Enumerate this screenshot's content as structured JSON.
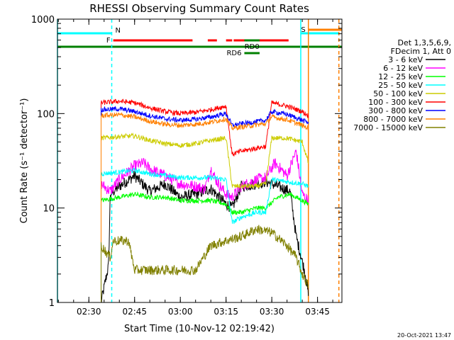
{
  "chart_data": {
    "type": "line",
    "title": "RHESSI Observing Summary Count Rates",
    "xlabel": "Start Time (10-Nov-12 02:19:42)",
    "ylabel": "Count Rate (s⁻¹ detector⁻¹)",
    "ylog": true,
    "xlim": [
      "02:19:42",
      "03:53:00"
    ],
    "ylim": [
      1,
      1000
    ],
    "x_ticks": [
      "02:30",
      "02:45",
      "03:00",
      "03:15",
      "03:30",
      "03:45"
    ],
    "y_ticks": [
      "1",
      "10",
      "100",
      "1000"
    ],
    "legend_header": [
      "Det 1,3,5,6,9,",
      "FDecim 1, Att 0"
    ],
    "legend_position": "right",
    "series": [
      {
        "name": "3 - 6 keV",
        "color": "#000000",
        "t": [
          "02:34:00",
          "02:36:30",
          "02:37:00",
          "02:40:00",
          "02:45:00",
          "02:50:00",
          "02:55:00",
          "03:00:00",
          "03:05:00",
          "03:10:00",
          "03:15:00",
          "03:17:00",
          "03:20:00",
          "03:25:00",
          "03:28:00",
          "03:32:00",
          "03:36:00",
          "03:38:00",
          "03:41:00",
          "03:42:00"
        ],
        "v": [
          1,
          2.5,
          14,
          17,
          22,
          15,
          18,
          13,
          14,
          16,
          11,
          10,
          17,
          18,
          19,
          17,
          15,
          5,
          2,
          1.2
        ]
      },
      {
        "name": "6 - 12 keV",
        "color": "#ff00ff",
        "t": [
          "02:34:00",
          "02:37:00",
          "02:40:00",
          "02:45:00",
          "02:48:00",
          "02:50:00",
          "02:55:00",
          "03:00:00",
          "03:05:00",
          "03:08:00",
          "03:10:00",
          "03:12:00",
          "03:15:00",
          "03:17:00",
          "03:20:00",
          "03:25:00",
          "03:28:00",
          "03:31:00",
          "03:35:00",
          "03:38:00",
          "03:40:00",
          "03:42:00"
        ],
        "v": [
          18,
          15,
          20,
          28,
          30,
          26,
          22,
          18,
          17,
          16,
          26,
          19,
          14,
          13,
          17,
          20,
          21,
          30,
          22,
          40,
          14,
          12
        ]
      },
      {
        "name": "12 - 25 keV",
        "color": "#00ff00",
        "t": [
          "02:34:00",
          "02:40:00",
          "02:45:00",
          "02:50:00",
          "02:55:00",
          "03:00:00",
          "03:05:00",
          "03:10:00",
          "03:15:00",
          "03:17:00",
          "03:20:00",
          "03:25:00",
          "03:28:00",
          "03:32:00",
          "03:36:00",
          "03:40:00",
          "03:42:00"
        ],
        "v": [
          12,
          13,
          14,
          13,
          13,
          12,
          12,
          12,
          11,
          9,
          9,
          10,
          10,
          13,
          14,
          12,
          11
        ]
      },
      {
        "name": "25 - 50 keV",
        "color": "#00ffff",
        "t": [
          "02:34:00",
          "02:40:00",
          "02:45:00",
          "02:50:00",
          "02:55:00",
          "03:00:00",
          "03:05:00",
          "03:10:00",
          "03:15:00",
          "03:17:00",
          "03:20:00",
          "03:25:00",
          "03:28:00",
          "03:30:00",
          "03:35:00",
          "03:40:00",
          "03:42:00"
        ],
        "v": [
          23,
          24,
          25,
          23,
          22,
          21,
          21,
          21,
          20,
          7,
          8,
          9,
          9,
          20,
          19,
          18,
          17
        ]
      },
      {
        "name": "50 - 100 keV",
        "color": "#cccc00",
        "t": [
          "02:34:00",
          "02:40:00",
          "02:45:00",
          "02:50:00",
          "02:55:00",
          "03:00:00",
          "03:05:00",
          "03:10:00",
          "03:15:00",
          "03:17:00",
          "03:20:00",
          "03:25:00",
          "03:28:00",
          "03:30:00",
          "03:35:00",
          "03:40:00",
          "03:42:00"
        ],
        "v": [
          55,
          57,
          58,
          52,
          48,
          46,
          48,
          52,
          55,
          17,
          17,
          17,
          18,
          55,
          55,
          50,
          30
        ]
      },
      {
        "name": "100 - 300 keV",
        "color": "#ff0000",
        "t": [
          "02:34:00",
          "02:40:00",
          "02:45:00",
          "02:50:00",
          "02:55:00",
          "03:00:00",
          "03:05:00",
          "03:10:00",
          "03:15:00",
          "03:17:00",
          "03:20:00",
          "03:25:00",
          "03:28:00",
          "03:30:00",
          "03:35:00",
          "03:40:00",
          "03:42:00"
        ],
        "v": [
          130,
          135,
          130,
          115,
          105,
          100,
          103,
          110,
          120,
          37,
          40,
          43,
          45,
          130,
          120,
          105,
          95
        ]
      },
      {
        "name": "300 - 800 keV",
        "color": "#0000ff",
        "t": [
          "02:34:00",
          "02:40:00",
          "02:45:00",
          "02:50:00",
          "02:55:00",
          "03:00:00",
          "03:05:00",
          "03:10:00",
          "03:15:00",
          "03:17:00",
          "03:20:00",
          "03:25:00",
          "03:28:00",
          "03:30:00",
          "03:35:00",
          "03:40:00",
          "03:42:00"
        ],
        "v": [
          110,
          112,
          105,
          95,
          88,
          85,
          87,
          92,
          100,
          75,
          78,
          82,
          85,
          105,
          98,
          85,
          80
        ]
      },
      {
        "name": "800 - 7000 keV",
        "color": "#ff8000",
        "t": [
          "02:34:00",
          "02:40:00",
          "02:45:00",
          "02:50:00",
          "02:55:00",
          "03:00:00",
          "03:05:00",
          "03:10:00",
          "03:15:00",
          "03:17:00",
          "03:20:00",
          "03:25:00",
          "03:28:00",
          "03:30:00",
          "03:35:00",
          "03:40:00",
          "03:42:00"
        ],
        "v": [
          95,
          97,
          92,
          83,
          77,
          75,
          77,
          81,
          88,
          70,
          72,
          76,
          78,
          92,
          86,
          75,
          70
        ]
      },
      {
        "name": "7000 - 15000 keV",
        "color": "#808000",
        "t": [
          "02:34:00",
          "02:37:00",
          "02:38:00",
          "02:43:00",
          "02:45:00",
          "02:55:00",
          "03:05:00",
          "03:10:00",
          "03:15:00",
          "03:20:00",
          "03:25:00",
          "03:30:00",
          "03:35:00",
          "03:38:00",
          "03:40:00",
          "03:42:00"
        ],
        "v": [
          4,
          3,
          4.5,
          4.5,
          2.2,
          2.2,
          2.2,
          4,
          4.5,
          5,
          6,
          5.5,
          4,
          3,
          2,
          1.5
        ]
      }
    ],
    "flag_bars": [
      {
        "label": "N",
        "color": "#00ffff",
        "segments": [
          [
            "02:19:42",
            "02:37:30"
          ],
          [
            "03:39:30",
            "03:52:00"
          ]
        ]
      },
      {
        "label": "F",
        "color": "#ff0000",
        "segments": [
          [
            "02:38:00",
            "03:04:00"
          ],
          [
            "03:09:00",
            "03:12:00"
          ],
          [
            "03:15:00",
            "03:17:00"
          ],
          [
            "03:17:30",
            "03:35:30"
          ]
        ]
      },
      {
        "label": "",
        "color": "#008000",
        "segments": [
          [
            "02:19:42",
            "03:53:00"
          ]
        ]
      },
      {
        "label": "RD6",
        "color": "#008000",
        "segments": [
          [
            "03:21:00",
            "03:26:00"
          ]
        ]
      },
      {
        "label": "RD0",
        "color": "#008000",
        "segments": [
          [
            "03:21:00",
            "03:26:00"
          ]
        ]
      },
      {
        "label": "S",
        "color": "#ff8000",
        "segments": [
          [
            "03:42:00",
            "03:53:00"
          ]
        ]
      }
    ],
    "vertical_markers": [
      {
        "t": "02:19:42",
        "color": "#00ffff",
        "dashed": false
      },
      {
        "t": "02:37:30",
        "color": "#00ffff",
        "dashed": true
      },
      {
        "t": "03:39:30",
        "color": "#00ffff",
        "dashed": false
      },
      {
        "t": "03:42:00",
        "color": "#ff8000",
        "dashed": false
      },
      {
        "t": "03:52:00",
        "color": "#ff8000",
        "dashed": true
      }
    ],
    "timestamp": "20-Oct-2021 13:47"
  }
}
